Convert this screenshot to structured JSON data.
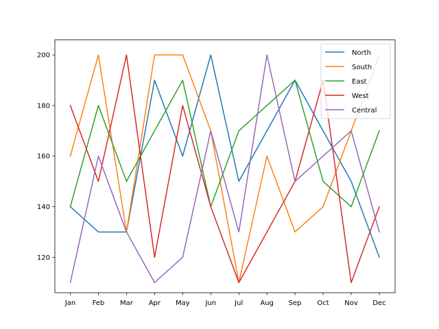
{
  "chart_data": {
    "type": "line",
    "title": "",
    "xlabel": "",
    "ylabel": "",
    "categories": [
      "Jan",
      "Feb",
      "Mar",
      "Apr",
      "May",
      "Jun",
      "Jul",
      "Aug",
      "Sep",
      "Oct",
      "Nov",
      "Dec"
    ],
    "ylim": [
      106,
      206
    ],
    "yticks": [
      120,
      140,
      160,
      180,
      200
    ],
    "ytick_labels": [
      "120",
      "140",
      "160",
      "180",
      "200"
    ],
    "grid": false,
    "legend": "top-right",
    "series": [
      {
        "name": "North",
        "color": "#1f77b4",
        "values": [
          140,
          130,
          130,
          190,
          160,
          200,
          150,
          170,
          190,
          170,
          150,
          120
        ]
      },
      {
        "name": "South",
        "color": "#ff7f0e",
        "values": [
          160,
          200,
          130,
          200,
          200,
          170,
          110,
          160,
          130,
          140,
          170,
          200
        ]
      },
      {
        "name": "East",
        "color": "#2ca02c",
        "values": [
          140,
          180,
          150,
          170,
          190,
          140,
          170,
          180,
          190,
          150,
          140,
          170
        ]
      },
      {
        "name": "West",
        "color": "#d62728",
        "values": [
          180,
          150,
          200,
          120,
          180,
          140,
          110,
          130,
          150,
          190,
          110,
          140
        ]
      },
      {
        "name": "Central",
        "color": "#9467bd",
        "values": [
          110,
          160,
          130,
          110,
          120,
          170,
          130,
          200,
          150,
          160,
          170,
          130
        ]
      }
    ]
  }
}
